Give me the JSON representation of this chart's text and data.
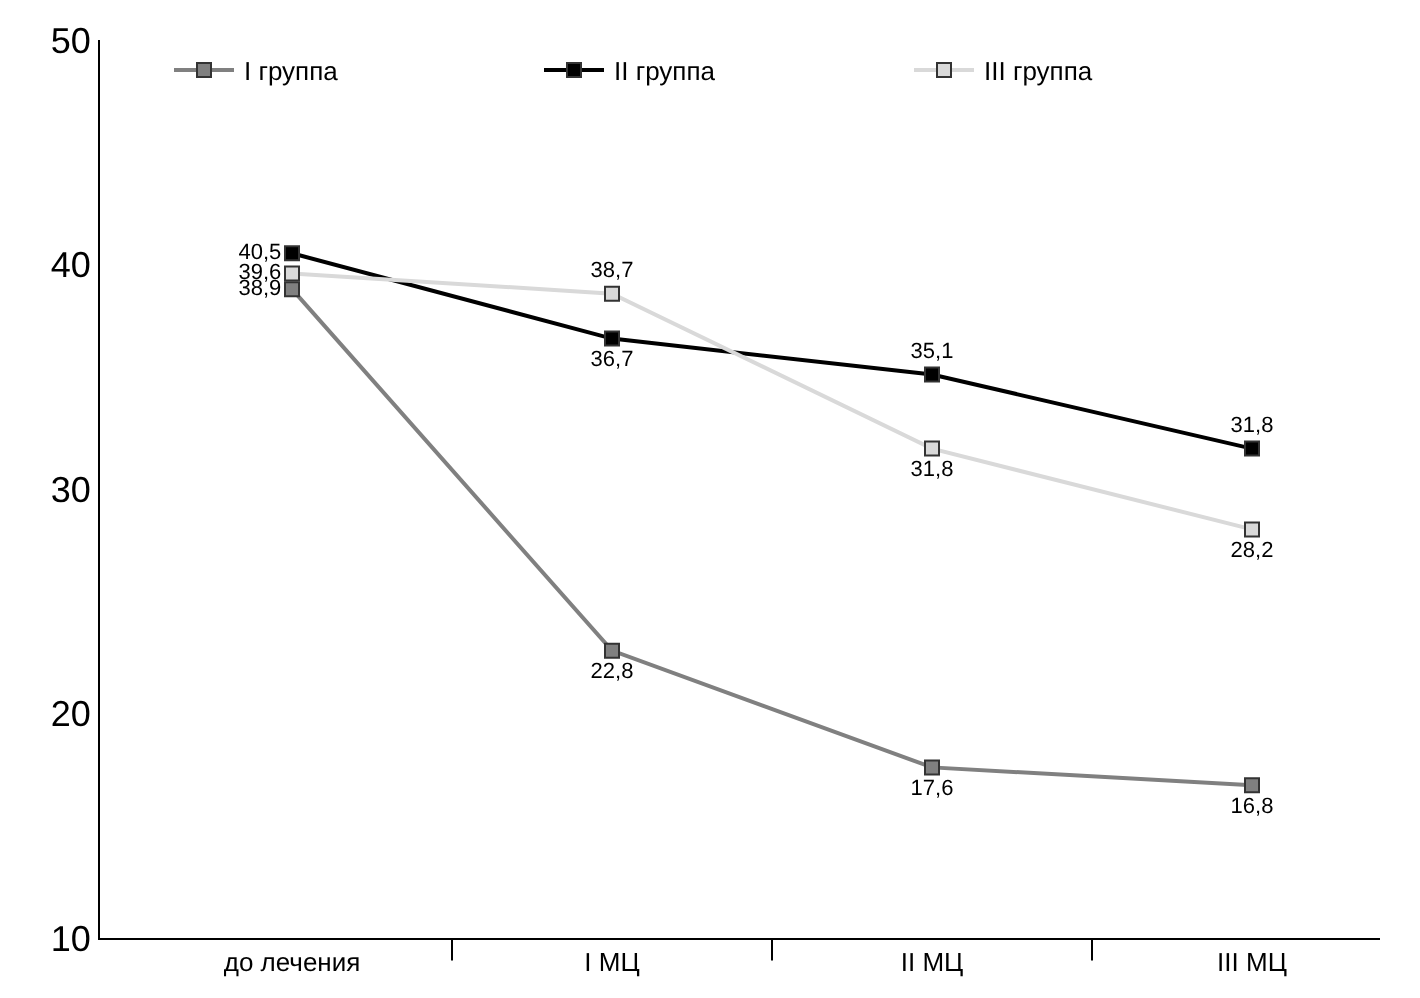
{
  "chart_data": {
    "type": "line",
    "categories": [
      "до лечения",
      "I МЦ",
      "II МЦ",
      "III МЦ"
    ],
    "series": [
      {
        "name": "I группа",
        "color": "#808080",
        "values": [
          38.9,
          22.8,
          17.6,
          16.8
        ],
        "value_labels": [
          "38,9",
          "22,8",
          "17,6",
          "16,8"
        ]
      },
      {
        "name": "II группа",
        "color": "#000000",
        "values": [
          40.5,
          36.7,
          35.1,
          31.8
        ],
        "value_labels": [
          "40,5",
          "36,7",
          "35,1",
          "31,8"
        ]
      },
      {
        "name": "III группа",
        "color": "#d9d9d9",
        "values": [
          39.6,
          38.7,
          31.8,
          28.2
        ],
        "value_labels": [
          "39,6",
          "38,7",
          "31,8",
          "28,2"
        ]
      }
    ],
    "ylim": [
      10,
      50
    ],
    "yticks": [
      10,
      20,
      30,
      40,
      50
    ],
    "grid": false,
    "legend": "top left",
    "marker": "square",
    "line_style": "solid"
  }
}
